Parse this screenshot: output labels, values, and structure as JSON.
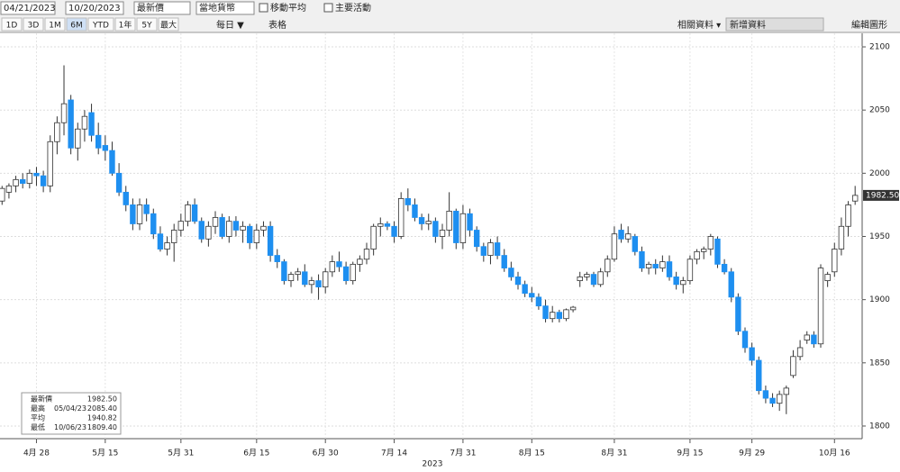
{
  "toolbar": {
    "start_date": "04/21/2023",
    "end_date": "10/20/2023",
    "field": "最新價",
    "currency": "當地貨幣",
    "moving_average": "移動平均",
    "events": "主要活動",
    "ranges": [
      "1D",
      "3D",
      "1M",
      "6M",
      "YTD",
      "1年",
      "5Y",
      "最大"
    ],
    "frequency": "每日 ▼",
    "table": "表格",
    "related": "相關資料 ▾",
    "add_data": "新增資料",
    "edit": "編輯圖形"
  },
  "chart_data": {
    "type": "candlestick",
    "up_color": "#ffffff",
    "down_color": "#1e8ff0",
    "edge_color": "#333333",
    "ylim": [
      1790,
      2110
    ],
    "yticks": [
      1800,
      1850,
      1900,
      1950,
      2000,
      2050,
      2100
    ],
    "grid": true,
    "xlim": [
      -0.3,
      124.5
    ],
    "xticks": [
      {
        "value": 5,
        "label": "4月 28"
      },
      {
        "value": 15,
        "label": "5月 15"
      },
      {
        "value": 26,
        "label": "5月 31"
      },
      {
        "value": 37,
        "label": "6月 15"
      },
      {
        "value": 47,
        "label": "6月 30"
      },
      {
        "value": 57,
        "label": "7月 14"
      },
      {
        "value": 67,
        "label": "7月 31"
      },
      {
        "value": 77,
        "label": "8月 15"
      },
      {
        "value": 89,
        "label": "8月 31"
      },
      {
        "value": 100,
        "label": "9月 15"
      },
      {
        "value": 109,
        "label": "9月 29"
      },
      {
        "value": 121,
        "label": "10月 16"
      }
    ],
    "xlabel": "2023",
    "last_price": {
      "value": 1982.5,
      "label": "1982.50"
    },
    "legend": [
      [
        "最新價",
        "",
        "1982.50"
      ],
      [
        "最高",
        "05/04/23",
        "2085.40"
      ],
      [
        "平均",
        "",
        "1940.82"
      ],
      [
        "最低",
        "10/06/23",
        "1809.40"
      ]
    ],
    "candles": [
      [
        1978,
        1990,
        1975,
        1988
      ],
      [
        1985,
        1992,
        1980,
        1990
      ],
      [
        1990,
        1998,
        1985,
        1995
      ],
      [
        1995,
        2000,
        1988,
        1992
      ],
      [
        1992,
        2003,
        1988,
        2000
      ],
      [
        2000,
        2005,
        1990,
        1998
      ],
      [
        1998,
        2002,
        1985,
        1990
      ],
      [
        1990,
        2030,
        1985,
        2025
      ],
      [
        2025,
        2045,
        2015,
        2040
      ],
      [
        2040,
        2085.4,
        2030,
        2055
      ],
      [
        2058,
        2062,
        2015,
        2020
      ],
      [
        2020,
        2040,
        2010,
        2035
      ],
      [
        2035,
        2050,
        2025,
        2045
      ],
      [
        2048,
        2055,
        2025,
        2030
      ],
      [
        2030,
        2040,
        2015,
        2020
      ],
      [
        2022,
        2030,
        2010,
        2018
      ],
      [
        2018,
        2025,
        1998,
        2000
      ],
      [
        2000,
        2008,
        1982,
        1985
      ],
      [
        1985,
        1990,
        1970,
        1975
      ],
      [
        1975,
        1980,
        1955,
        1960
      ],
      [
        1960,
        1980,
        1955,
        1975
      ],
      [
        1975,
        1980,
        1962,
        1968
      ],
      [
        1968,
        1972,
        1948,
        1952
      ],
      [
        1952,
        1958,
        1938,
        1940
      ],
      [
        1940,
        1950,
        1935,
        1945
      ],
      [
        1945,
        1960,
        1930,
        1955
      ],
      [
        1955,
        1968,
        1950,
        1962
      ],
      [
        1962,
        1978,
        1958,
        1975
      ],
      [
        1975,
        1980,
        1960,
        1962
      ],
      [
        1962,
        1965,
        1945,
        1948
      ],
      [
        1948,
        1962,
        1942,
        1958
      ],
      [
        1958,
        1970,
        1952,
        1965
      ],
      [
        1965,
        1968,
        1948,
        1950
      ],
      [
        1950,
        1966,
        1945,
        1962
      ],
      [
        1962,
        1966,
        1950,
        1955
      ],
      [
        1955,
        1962,
        1945,
        1958
      ],
      [
        1958,
        1960,
        1940,
        1945
      ],
      [
        1945,
        1960,
        1940,
        1955
      ],
      [
        1955,
        1962,
        1950,
        1958
      ],
      [
        1958,
        1962,
        1930,
        1935
      ],
      [
        1935,
        1940,
        1925,
        1930
      ],
      [
        1930,
        1932,
        1912,
        1915
      ],
      [
        1915,
        1922,
        1910,
        1920
      ],
      [
        1920,
        1925,
        1915,
        1922
      ],
      [
        1922,
        1928,
        1910,
        1912
      ],
      [
        1912,
        1918,
        1905,
        1915
      ],
      [
        1915,
        1920,
        1900,
        1910
      ],
      [
        1910,
        1925,
        1905,
        1922
      ],
      [
        1922,
        1935,
        1918,
        1930
      ],
      [
        1930,
        1938,
        1922,
        1926
      ],
      [
        1926,
        1930,
        1912,
        1915
      ],
      [
        1915,
        1930,
        1912,
        1928
      ],
      [
        1928,
        1935,
        1922,
        1932
      ],
      [
        1932,
        1945,
        1928,
        1940
      ],
      [
        1940,
        1960,
        1935,
        1958
      ],
      [
        1958,
        1965,
        1950,
        1960
      ],
      [
        1960,
        1962,
        1955,
        1958
      ],
      [
        1958,
        1962,
        1945,
        1950
      ],
      [
        1950,
        1985,
        1948,
        1980
      ],
      [
        1980,
        1988,
        1970,
        1975
      ],
      [
        1975,
        1980,
        1962,
        1965
      ],
      [
        1965,
        1968,
        1955,
        1960
      ],
      [
        1960,
        1968,
        1955,
        1962
      ],
      [
        1962,
        1965,
        1945,
        1950
      ],
      [
        1950,
        1960,
        1940,
        1955
      ],
      [
        1955,
        1985,
        1950,
        1970
      ],
      [
        1970,
        1972,
        1940,
        1945
      ],
      [
        1945,
        1975,
        1940,
        1968
      ],
      [
        1968,
        1972,
        1950,
        1955
      ],
      [
        1955,
        1958,
        1938,
        1942
      ],
      [
        1942,
        1945,
        1930,
        1935
      ],
      [
        1935,
        1948,
        1928,
        1945
      ],
      [
        1945,
        1950,
        1932,
        1935
      ],
      [
        1935,
        1940,
        1922,
        1925
      ],
      [
        1925,
        1930,
        1915,
        1918
      ],
      [
        1918,
        1922,
        1908,
        1912
      ],
      [
        1912,
        1915,
        1902,
        1905
      ],
      [
        1905,
        1910,
        1898,
        1902
      ],
      [
        1902,
        1905,
        1892,
        1895
      ],
      [
        1895,
        1900,
        1882,
        1885
      ],
      [
        1885,
        1895,
        1882,
        1890
      ],
      [
        1890,
        1892,
        1882,
        1885
      ],
      [
        1885,
        1893,
        1883,
        1892
      ],
      [
        1892,
        1895,
        1890,
        1894
      ],
      [
        1915,
        1922,
        1910,
        1918
      ],
      [
        1918,
        1922,
        1915,
        1920
      ],
      [
        1920,
        1922,
        1910,
        1912
      ],
      [
        1912,
        1925,
        1910,
        1922
      ],
      [
        1922,
        1935,
        1918,
        1932
      ],
      [
        1932,
        1958,
        1930,
        1952
      ],
      [
        1955,
        1960,
        1945,
        1948
      ],
      [
        1948,
        1958,
        1945,
        1952
      ],
      [
        1950,
        1952,
        1935,
        1938
      ],
      [
        1938,
        1942,
        1922,
        1925
      ],
      [
        1925,
        1930,
        1920,
        1928
      ],
      [
        1928,
        1932,
        1920,
        1925
      ],
      [
        1925,
        1935,
        1922,
        1930
      ],
      [
        1930,
        1935,
        1915,
        1918
      ],
      [
        1918,
        1922,
        1908,
        1912
      ],
      [
        1912,
        1918,
        1905,
        1915
      ],
      [
        1915,
        1935,
        1912,
        1932
      ],
      [
        1932,
        1940,
        1928,
        1938
      ],
      [
        1938,
        1942,
        1932,
        1940
      ],
      [
        1940,
        1952,
        1935,
        1950
      ],
      [
        1948,
        1950,
        1925,
        1928
      ],
      [
        1928,
        1932,
        1920,
        1922
      ],
      [
        1922,
        1925,
        1898,
        1902
      ],
      [
        1902,
        1905,
        1872,
        1875
      ],
      [
        1875,
        1878,
        1858,
        1862
      ],
      [
        1862,
        1866,
        1848,
        1852
      ],
      [
        1852,
        1855,
        1825,
        1828
      ],
      [
        1828,
        1832,
        1818,
        1822
      ],
      [
        1822,
        1826,
        1815,
        1818
      ],
      [
        1818,
        1828,
        1812,
        1825
      ],
      [
        1825,
        1832,
        1809.4,
        1830
      ],
      [
        1840,
        1860,
        1838,
        1855
      ],
      [
        1855,
        1868,
        1852,
        1862
      ],
      [
        1868,
        1875,
        1865,
        1872
      ],
      [
        1872,
        1875,
        1862,
        1865
      ],
      [
        1865,
        1928,
        1862,
        1925
      ],
      [
        1915,
        1922,
        1910,
        1920
      ],
      [
        1922,
        1945,
        1918,
        1940
      ],
      [
        1940,
        1965,
        1935,
        1958
      ],
      [
        1958,
        1978,
        1950,
        1975
      ],
      [
        1978,
        1990,
        1975,
        1982.5
      ]
    ]
  }
}
